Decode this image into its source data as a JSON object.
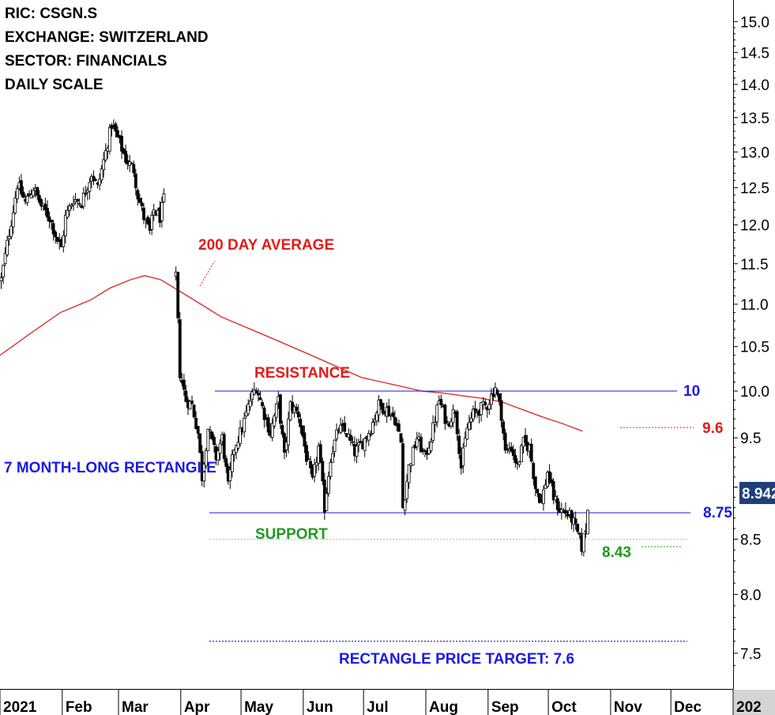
{
  "header": {
    "ric": "RIC: CSGN.S",
    "exchange": "EXCHANGE: SWITZERLAND",
    "sector": "SECTOR: FINANCIALS",
    "scale": "DAILY SCALE"
  },
  "annotations": {
    "ma_label": "200 DAY AVERAGE",
    "resistance_label": "RESISTANCE",
    "resistance_value": "10",
    "ma_value": "9.6",
    "support_label": "SUPPORT",
    "support_value": "8.75",
    "low_value": "8.43",
    "pattern_label": "7 MONTH-LONG RECTANGLE",
    "target_label": "RECTANGLE PRICE TARGET: 7.6",
    "last_price": "8.942"
  },
  "colors": {
    "blue": "#1a1ae6",
    "red": "#e61a1a",
    "green": "#1e9a1e",
    "ma": "#e03030",
    "badge": "#1f3f7a"
  },
  "chart_data": {
    "type": "candlestick",
    "x_axis": {
      "labels": [
        "2021",
        "Feb",
        "Mar",
        "Apr",
        "May",
        "Jun",
        "Jul",
        "Aug",
        "Sep",
        "Oct",
        "Nov",
        "Dec",
        "202"
      ],
      "tick_days": [
        0,
        31,
        59,
        90,
        120,
        151,
        181,
        212,
        243,
        273,
        304,
        334,
        365
      ]
    },
    "y_axis": {
      "scale": "log",
      "range": [
        7.3,
        15.2
      ],
      "ticks": [
        15.0,
        14.5,
        14.0,
        13.5,
        13.0,
        12.5,
        12.0,
        11.5,
        11.0,
        10.5,
        10.0,
        9.5,
        9.0,
        8.5,
        8.0,
        7.5
      ],
      "tick_labels": [
        "15.0",
        "14.5",
        "14.0",
        "13.5",
        "13.0",
        "12.5",
        "12.0",
        "11.5",
        "11.0",
        "10.5",
        "10.0",
        "9.5",
        "9.0",
        "8.5",
        "8.0",
        "7.5"
      ]
    },
    "levels": {
      "resistance": 10.0,
      "support": 8.75,
      "ma_level": 9.6,
      "low": 8.43,
      "target": 7.6,
      "last": 8.942
    },
    "series": [
      {
        "points": [
          [
            0,
            11.3
          ],
          [
            3,
            11.75
          ],
          [
            6,
            12.2
          ],
          [
            8,
            12.55
          ],
          [
            12,
            12.3
          ],
          [
            16,
            12.5
          ],
          [
            20,
            12.25
          ],
          [
            24,
            12.1
          ],
          [
            28,
            11.8
          ],
          [
            30,
            11.7
          ],
          [
            32,
            12.1
          ],
          [
            36,
            12.35
          ],
          [
            40,
            12.3
          ],
          [
            45,
            12.7
          ],
          [
            48,
            12.5
          ],
          [
            52,
            13.0
          ],
          [
            55,
            13.4
          ],
          [
            58,
            13.2
          ],
          [
            62,
            12.9
          ],
          [
            66,
            12.75
          ],
          [
            68,
            12.4
          ],
          [
            71,
            12.1
          ],
          [
            74,
            11.9
          ],
          [
            76,
            12.2
          ],
          [
            79,
            12.1
          ],
          [
            82,
            12.45
          ]
        ]
      },
      {
        "points": [
          [
            87,
            11.35
          ],
          [
            89,
            10.2
          ],
          [
            92,
            9.9
          ],
          [
            95,
            9.85
          ],
          [
            98,
            9.55
          ],
          [
            100,
            9.1
          ],
          [
            103,
            9.6
          ],
          [
            107,
            9.3
          ],
          [
            110,
            9.5
          ],
          [
            113,
            9.0
          ],
          [
            116,
            9.4
          ],
          [
            120,
            9.6
          ],
          [
            124,
            9.9
          ],
          [
            127,
            10.05
          ],
          [
            131,
            9.75
          ],
          [
            134,
            9.55
          ],
          [
            138,
            9.9
          ],
          [
            141,
            9.3
          ],
          [
            144,
            9.85
          ],
          [
            148,
            9.75
          ],
          [
            152,
            9.3
          ],
          [
            155,
            9.05
          ],
          [
            158,
            9.4
          ],
          [
            161,
            8.8
          ],
          [
            164,
            9.3
          ],
          [
            168,
            9.6
          ],
          [
            172,
            9.55
          ],
          [
            176,
            9.35
          ],
          [
            180,
            9.45
          ],
          [
            184,
            9.6
          ],
          [
            188,
            9.85
          ],
          [
            192,
            9.8
          ],
          [
            196,
            9.7
          ],
          [
            199,
            9.45
          ],
          [
            200,
            8.8
          ],
          [
            203,
            9.2
          ],
          [
            207,
            9.5
          ],
          [
            211,
            9.3
          ],
          [
            214,
            9.5
          ],
          [
            218,
            9.9
          ],
          [
            222,
            9.65
          ],
          [
            226,
            9.8
          ],
          [
            229,
            9.2
          ],
          [
            232,
            9.6
          ],
          [
            235,
            9.75
          ],
          [
            238,
            9.8
          ],
          [
            242,
            9.85
          ],
          [
            246,
            10.05
          ],
          [
            249,
            9.75
          ],
          [
            251,
            9.35
          ],
          [
            254,
            9.4
          ],
          [
            257,
            9.2
          ],
          [
            260,
            9.45
          ],
          [
            263,
            9.4
          ],
          [
            266,
            9.0
          ],
          [
            269,
            8.85
          ],
          [
            272,
            9.15
          ],
          [
            275,
            8.9
          ],
          [
            278,
            8.78
          ],
          [
            281,
            8.75
          ],
          [
            284,
            8.7
          ],
          [
            287,
            8.55
          ],
          [
            289,
            8.43
          ],
          [
            291,
            8.6
          ],
          [
            293,
            8.94
          ]
        ]
      }
    ],
    "moving_average": [
      [
        0,
        10.4
      ],
      [
        15,
        10.65
      ],
      [
        30,
        10.9
      ],
      [
        45,
        11.05
      ],
      [
        55,
        11.2
      ],
      [
        65,
        11.3
      ],
      [
        72,
        11.35
      ],
      [
        80,
        11.3
      ],
      [
        90,
        11.15
      ],
      [
        100,
        11.0
      ],
      [
        110,
        10.85
      ],
      [
        120,
        10.75
      ],
      [
        130,
        10.65
      ],
      [
        140,
        10.55
      ],
      [
        150,
        10.45
      ],
      [
        160,
        10.35
      ],
      [
        170,
        10.25
      ],
      [
        180,
        10.15
      ],
      [
        190,
        10.1
      ],
      [
        200,
        10.05
      ],
      [
        210,
        10.0
      ],
      [
        220,
        9.98
      ],
      [
        230,
        9.95
      ],
      [
        240,
        9.92
      ],
      [
        250,
        9.88
      ],
      [
        260,
        9.8
      ],
      [
        270,
        9.72
      ],
      [
        280,
        9.65
      ],
      [
        290,
        9.57
      ]
    ]
  }
}
